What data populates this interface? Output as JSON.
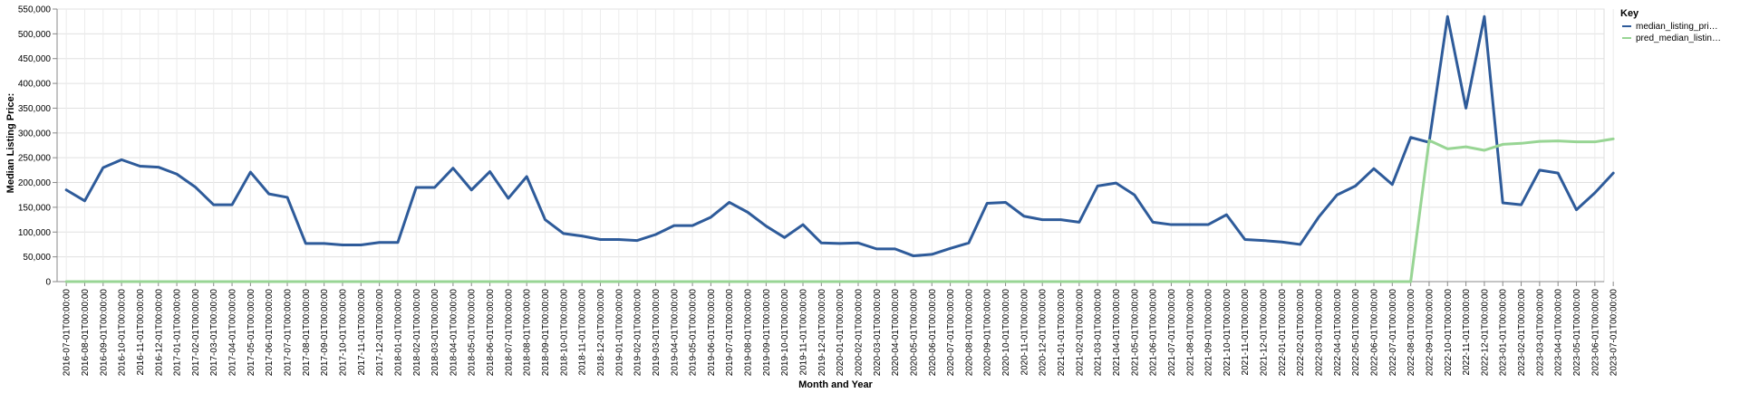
{
  "chart_data": {
    "type": "line",
    "xlabel": "Month and Year",
    "ylabel": "Median Listing Price:",
    "ylim": [
      0,
      550000
    ],
    "yticks": [
      "0",
      "50,000",
      "100,000",
      "150,000",
      "200,000",
      "250,000",
      "300,000",
      "350,000",
      "400,000",
      "450,000",
      "500,000",
      "550,000"
    ],
    "grid": true,
    "legend": {
      "title": "Key",
      "placement": "top-right",
      "labels": [
        "median_listing_pri…",
        "pred_median_listin…"
      ]
    },
    "x": [
      "2016-07-01T00:00:00",
      "2016-08-01T00:00:00",
      "2016-09-01T00:00:00",
      "2016-10-01T00:00:00",
      "2016-11-01T00:00:00",
      "2016-12-01T00:00:00",
      "2017-01-01T00:00:00",
      "2017-02-01T00:00:00",
      "2017-03-01T00:00:00",
      "2017-04-01T00:00:00",
      "2017-05-01T00:00:00",
      "2017-06-01T00:00:00",
      "2017-07-01T00:00:00",
      "2017-08-01T00:00:00",
      "2017-09-01T00:00:00",
      "2017-10-01T00:00:00",
      "2017-11-01T00:00:00",
      "2017-12-01T00:00:00",
      "2018-01-01T00:00:00",
      "2018-02-01T00:00:00",
      "2018-03-01T00:00:00",
      "2018-04-01T00:00:00",
      "2018-05-01T00:00:00",
      "2018-06-01T00:00:00",
      "2018-07-01T00:00:00",
      "2018-08-01T00:00:00",
      "2018-09-01T00:00:00",
      "2018-10-01T00:00:00",
      "2018-11-01T00:00:00",
      "2018-12-01T00:00:00",
      "2019-01-01T00:00:00",
      "2019-02-01T00:00:00",
      "2019-03-01T00:00:00",
      "2019-04-01T00:00:00",
      "2019-05-01T00:00:00",
      "2019-06-01T00:00:00",
      "2019-07-01T00:00:00",
      "2019-08-01T00:00:00",
      "2019-09-01T00:00:00",
      "2019-10-01T00:00:00",
      "2019-11-01T00:00:00",
      "2019-12-01T00:00:00",
      "2020-01-01T00:00:00",
      "2020-02-01T00:00:00",
      "2020-03-01T00:00:00",
      "2020-04-01T00:00:00",
      "2020-05-01T00:00:00",
      "2020-06-01T00:00:00",
      "2020-07-01T00:00:00",
      "2020-08-01T00:00:00",
      "2020-09-01T00:00:00",
      "2020-10-01T00:00:00",
      "2020-11-01T00:00:00",
      "2020-12-01T00:00:00",
      "2021-01-01T00:00:00",
      "2021-02-01T00:00:00",
      "2021-03-01T00:00:00",
      "2021-04-01T00:00:00",
      "2021-05-01T00:00:00",
      "2021-06-01T00:00:00",
      "2021-07-01T00:00:00",
      "2021-08-01T00:00:00",
      "2021-09-01T00:00:00",
      "2021-10-01T00:00:00",
      "2021-11-01T00:00:00",
      "2021-12-01T00:00:00",
      "2022-01-01T00:00:00",
      "2022-02-01T00:00:00",
      "2022-03-01T00:00:00",
      "2022-04-01T00:00:00",
      "2022-05-01T00:00:00",
      "2022-06-01T00:00:00",
      "2022-07-01T00:00:00",
      "2022-08-01T00:00:00",
      "2022-09-01T00:00:00",
      "2022-10-01T00:00:00",
      "2022-11-01T00:00:00",
      "2022-12-01T00:00:00",
      "2023-01-01T00:00:00",
      "2023-02-01T00:00:00",
      "2023-03-01T00:00:00",
      "2023-04-01T00:00:00",
      "2023-05-01T00:00:00",
      "2023-06-01T00:00:00",
      "2023-07-01T00:00:00"
    ],
    "series": [
      {
        "name": "median_listing_pri…",
        "color": "#2e5b9a",
        "values": [
          185000,
          163000,
          230000,
          246000,
          233000,
          231000,
          217000,
          191000,
          155000,
          155000,
          221000,
          177000,
          170000,
          77000,
          77000,
          74000,
          74000,
          79000,
          79000,
          190000,
          190000,
          229000,
          185000,
          222000,
          168000,
          212000,
          125000,
          97000,
          92000,
          85000,
          85000,
          83000,
          95000,
          113000,
          113000,
          130000,
          160000,
          140000,
          112000,
          89000,
          115000,
          78000,
          77000,
          78000,
          66000,
          66000,
          52000,
          55000,
          67000,
          78000,
          158000,
          160000,
          132000,
          125000,
          125000,
          120000,
          193000,
          199000,
          175000,
          120000,
          115000,
          115000,
          115000,
          135000,
          85000,
          83000,
          80000,
          75000,
          130000,
          175000,
          193000,
          228000,
          196000,
          291000,
          281000,
          535000,
          350000,
          535000,
          159000,
          155000,
          225000,
          219000,
          145000,
          179000,
          219000
        ]
      },
      {
        "name": "pred_median_listin…",
        "color": "#98d594",
        "values": [
          0,
          0,
          0,
          0,
          0,
          0,
          0,
          0,
          0,
          0,
          0,
          0,
          0,
          0,
          0,
          0,
          0,
          0,
          0,
          0,
          0,
          0,
          0,
          0,
          0,
          0,
          0,
          0,
          0,
          0,
          0,
          0,
          0,
          0,
          0,
          0,
          0,
          0,
          0,
          0,
          0,
          0,
          0,
          0,
          0,
          0,
          0,
          0,
          0,
          0,
          0,
          0,
          0,
          0,
          0,
          0,
          0,
          0,
          0,
          0,
          0,
          0,
          0,
          0,
          0,
          0,
          0,
          0,
          0,
          0,
          0,
          0,
          0,
          0,
          285000,
          268000,
          272000,
          265000,
          277000,
          279000,
          283000,
          284000,
          282000,
          282000,
          288000
        ]
      }
    ]
  }
}
